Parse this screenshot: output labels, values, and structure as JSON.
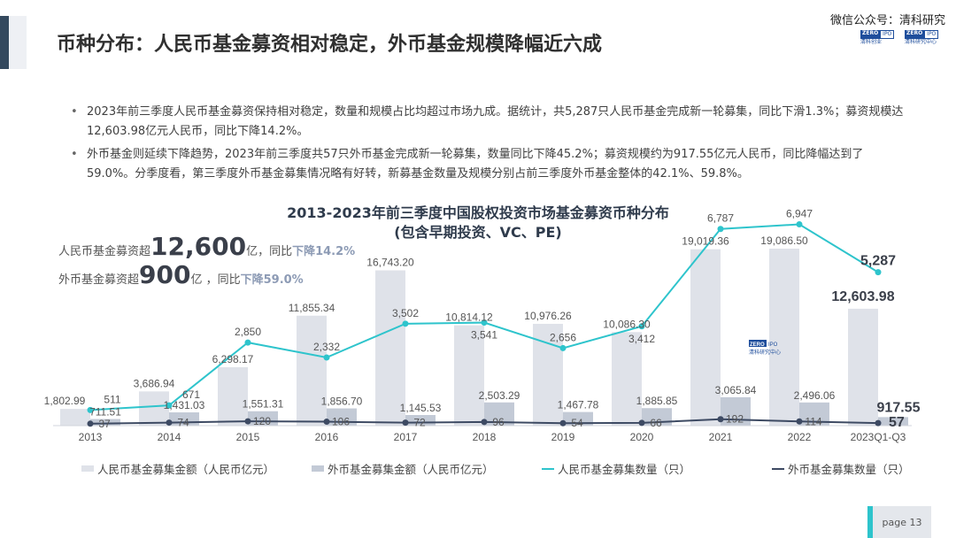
{
  "header": {
    "title": "币种分布：人民币基金募资相对稳定，外币基金规模降幅近六成",
    "wechat": "微信公众号：清科研究",
    "logos": [
      {
        "a": "ZERO",
        "b": "IPO",
        "cn": "清科创业"
      },
      {
        "a": "ZERO",
        "b": "IPO",
        "cn": "清科研究中心"
      }
    ]
  },
  "bullets": [
    "2023年前三季度人民币基金募资保持相对稳定，数量和规模占比均超过市场九成。据统计，共5,287只人民币基金完成新一轮募集，同比下滑1.3%；募资规模达12,603.98亿元人民币，同比下降14.2%。",
    "外币基金则延续下降趋势，2023年前三季度共57只外币基金完成新一轮募集，数量同比下降45.2%；募资规模约为917.55亿元人民币，同比降幅达到了59.0%。分季度看，第三季度外币基金募集情况略有好转，新募基金数量及规模分别占前三季度外币基金整体的42.1%、59.8%。"
  ],
  "highlights": {
    "rmb": {
      "prefix": "人民币基金募资超",
      "value": "12,600",
      "suffix": "亿，同比",
      "down": "下降14.2%"
    },
    "fx": {
      "prefix": "外币基金募资超",
      "value": "900",
      "suffix": "亿 ，同比",
      "down": "下降59.0%"
    }
  },
  "chart_data": {
    "type": "bar",
    "title": "2013-2023年前三季度中国股权投资市场基金募资币种分布",
    "subtitle": "(包含早期投资、VC、PE)",
    "categories": [
      "2013",
      "2014",
      "2015",
      "2016",
      "2017",
      "2018",
      "2019",
      "2020",
      "2021",
      "2022",
      "2023Q1-Q3"
    ],
    "series": [
      {
        "name": "人民币基金募集金额（人民币亿元）",
        "kind": "bar",
        "color": "#dfe2e9",
        "values": [
          1802.99,
          3686.94,
          6298.17,
          11855.34,
          16743.2,
          10814.12,
          10976.26,
          10086.3,
          19019.36,
          19086.5,
          12603.98
        ],
        "labels": [
          "1,802.99",
          "3,686.94",
          "6,298.17",
          "11,855.34",
          "16,743.20",
          "10,814.12",
          "10,976.26",
          "10,086.30",
          "19,019.36",
          "19,086.50",
          "12,603.98"
        ]
      },
      {
        "name": "外币基金募集金额（人民币亿元）",
        "kind": "bar",
        "color": "#c3cad6",
        "values": [
          711.51,
          1431.03,
          1551.31,
          1856.7,
          1145.53,
          2503.29,
          1467.78,
          1885.85,
          3065.84,
          2496.06,
          917.55
        ],
        "labels": [
          "711.51",
          "1,431.03",
          "1,551.31",
          "1,856.70",
          "1,145.53",
          "2,503.29",
          "1,467.78",
          "1,885.85",
          "3,065.84",
          "2,496.06",
          "917.55"
        ]
      },
      {
        "name": "人民币基金募集数量（只）",
        "kind": "line",
        "color": "#2ec4cc",
        "values": [
          511,
          671,
          2850,
          2332,
          3502,
          3541,
          2656,
          3412,
          6787,
          6947,
          5287
        ],
        "labels": [
          "511",
          "671",
          "2,850",
          "2,332",
          "3,502",
          "3,541",
          "2,656",
          "3,412",
          "6,787",
          "6,947",
          "5,287"
        ]
      },
      {
        "name": "外币基金募集数量（只）",
        "kind": "line",
        "color": "#3d4a63",
        "values": [
          37,
          74,
          120,
          106,
          72,
          96,
          54,
          66,
          192,
          114,
          57
        ],
        "labels": [
          "37",
          "74",
          "120",
          "106",
          "72",
          "96",
          "54",
          "66",
          "192",
          "114",
          "57"
        ]
      }
    ],
    "legend": "bottom",
    "grid": false
  },
  "watermark": {
    "a": "ZERO",
    "b": "IPO",
    "cn": "清科研究中心"
  },
  "footer": {
    "page": "page  13"
  }
}
